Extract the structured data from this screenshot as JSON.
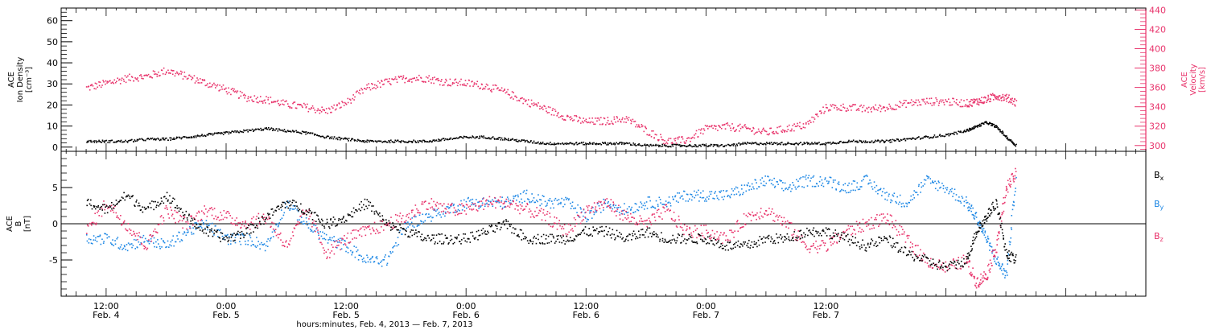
{
  "chart_data": [
    {
      "type": "scatter",
      "panel": "top",
      "ylabel_left": [
        "ACE",
        "Ion Density",
        "[cm⁻³]"
      ],
      "ylabel_right": [
        "ACE",
        "Velocity",
        "[km/s]"
      ],
      "ylim_left": [
        -2,
        66
      ],
      "ylim_right": [
        294,
        442
      ],
      "yticks_left": [
        "0",
        "10",
        "20",
        "30",
        "40",
        "50",
        "60"
      ],
      "yticks_right": [
        "300",
        "320",
        "340",
        "360",
        "380",
        "400",
        "420",
        "440"
      ],
      "colors": {
        "density": "#000000",
        "velocity": "#e8336b"
      },
      "series": [
        {
          "name": "Ion Density",
          "axis": "left",
          "color": "#000000",
          "x": [
            -2,
            0,
            2,
            4,
            6,
            8,
            10,
            12,
            14,
            16,
            18,
            20,
            22,
            24,
            26,
            28,
            30,
            32,
            34,
            36,
            38,
            40,
            42,
            44,
            46,
            48,
            50,
            52,
            54,
            56,
            58,
            60,
            62,
            64,
            66,
            68,
            70,
            72,
            74,
            76,
            78,
            80,
            82,
            84,
            86,
            87,
            88,
            89,
            90,
            91
          ],
          "y": [
            3,
            3,
            3,
            4,
            4,
            5,
            6,
            7,
            8,
            9,
            8,
            7,
            5,
            4,
            3,
            3,
            3,
            3,
            4,
            5,
            5,
            4,
            3,
            2,
            2,
            2,
            2,
            2,
            1,
            1,
            1,
            1,
            1,
            2,
            2,
            2,
            2,
            2,
            3,
            3,
            3,
            4,
            5,
            6,
            8,
            10,
            12,
            10,
            5,
            1
          ]
        },
        {
          "name": "Velocity",
          "axis": "right",
          "color": "#e8336b",
          "x": [
            -2,
            0,
            2,
            4,
            6,
            8,
            10,
            12,
            14,
            16,
            18,
            20,
            22,
            24,
            26,
            28,
            30,
            32,
            34,
            36,
            38,
            40,
            42,
            44,
            46,
            48,
            50,
            52,
            54,
            56,
            58,
            60,
            62,
            64,
            66,
            68,
            70,
            72,
            74,
            76,
            78,
            80,
            82,
            84,
            86,
            87,
            88,
            89,
            90,
            91
          ],
          "y": [
            360,
            365,
            370,
            372,
            378,
            372,
            365,
            358,
            350,
            348,
            343,
            340,
            336,
            345,
            360,
            366,
            370,
            370,
            366,
            365,
            362,
            355,
            346,
            338,
            330,
            325,
            326,
            328,
            316,
            305,
            306,
            318,
            320,
            318,
            314,
            318,
            322,
            340,
            340,
            338,
            340,
            344,
            346,
            346,
            344,
            346,
            348,
            352,
            350,
            345
          ]
        }
      ]
    },
    {
      "type": "scatter",
      "panel": "bottom",
      "ylabel_left": [
        "ACE",
        "B",
        "[nT]"
      ],
      "ylim_left": [
        -10,
        10
      ],
      "yticks_left": [
        "5",
        "0",
        "-5"
      ],
      "xlim": [
        -4.5,
        104
      ],
      "xticks": [
        {
          "x": 0,
          "line1": "12:00",
          "line2": "Feb. 4"
        },
        {
          "x": 12,
          "line1": "0:00",
          "line2": "Feb. 5"
        },
        {
          "x": 24,
          "line1": "12:00",
          "line2": "Feb. 5"
        },
        {
          "x": 36,
          "line1": "0:00",
          "line2": "Feb. 6"
        },
        {
          "x": 48,
          "line1": "12:00",
          "line2": "Feb. 6"
        },
        {
          "x": 60,
          "line1": "0:00",
          "line2": "Feb. 7"
        },
        {
          "x": 72,
          "line1": "12:00",
          "line2": "Feb. 7"
        }
      ],
      "xlabel": "hours:minutes, Feb.  4, 2013 — Feb.  7, 2013",
      "legend": [
        {
          "label": "B",
          "sub": "x",
          "color": "#000000"
        },
        {
          "label": "B",
          "sub": "y",
          "color": "#1e88e5"
        },
        {
          "label": "B",
          "sub": "z",
          "color": "#e8336b"
        }
      ],
      "series": [
        {
          "name": "Bx",
          "color": "#000000",
          "x": [
            -2,
            0,
            2,
            4,
            6,
            8,
            10,
            12,
            14,
            16,
            18,
            20,
            22,
            24,
            26,
            28,
            30,
            32,
            34,
            36,
            38,
            40,
            42,
            44,
            46,
            48,
            50,
            52,
            54,
            56,
            58,
            60,
            62,
            64,
            66,
            68,
            70,
            72,
            74,
            76,
            78,
            80,
            82,
            84,
            86,
            87,
            88,
            89,
            90,
            91
          ],
          "y": [
            3,
            2,
            4,
            2,
            4,
            1,
            -1,
            -2,
            -1,
            1,
            3,
            2,
            0,
            1,
            3,
            0,
            -1,
            -2,
            -2,
            -2,
            -1,
            0,
            -2,
            -2,
            -2,
            -1,
            -1,
            -2,
            -1,
            -2,
            -2,
            -2,
            -3,
            -3,
            -2,
            -2,
            -1,
            -1,
            -2,
            -3,
            -2,
            -4,
            -5,
            -6,
            -5,
            -1,
            1,
            3,
            -4,
            -5
          ]
        },
        {
          "name": "By",
          "color": "#1e88e5",
          "x": [
            -2,
            0,
            2,
            4,
            6,
            8,
            10,
            12,
            14,
            16,
            18,
            20,
            22,
            24,
            26,
            28,
            30,
            32,
            34,
            36,
            38,
            40,
            42,
            44,
            46,
            48,
            50,
            52,
            54,
            56,
            58,
            60,
            62,
            64,
            66,
            68,
            70,
            72,
            74,
            76,
            78,
            80,
            82,
            84,
            86,
            87,
            88,
            89,
            90,
            91
          ],
          "y": [
            -2,
            -2,
            -3,
            -2,
            -3,
            -1,
            0,
            -2,
            -2,
            -3,
            3,
            0,
            -2,
            -3,
            -5,
            -5,
            0,
            1,
            2,
            3,
            3,
            3,
            4,
            3,
            3,
            1,
            3,
            2,
            3,
            3,
            4,
            4,
            4,
            5,
            6,
            5,
            6,
            6,
            5,
            6,
            4,
            3,
            6,
            5,
            3,
            1,
            -2,
            -5,
            -7,
            7
          ]
        },
        {
          "name": "Bz",
          "color": "#e8336b",
          "x": [
            -2,
            0,
            2,
            4,
            6,
            8,
            10,
            12,
            14,
            16,
            18,
            20,
            22,
            24,
            26,
            28,
            30,
            32,
            34,
            36,
            38,
            40,
            42,
            44,
            46,
            48,
            50,
            52,
            54,
            56,
            58,
            60,
            62,
            64,
            66,
            68,
            70,
            72,
            74,
            76,
            78,
            80,
            82,
            84,
            86,
            87,
            88,
            89,
            90,
            91
          ],
          "y": [
            -1,
            3,
            0,
            -3,
            2,
            0,
            2,
            1,
            0,
            1,
            -3,
            2,
            -4,
            -2,
            -1,
            0,
            1,
            3,
            2,
            2,
            3,
            3,
            2,
            1,
            -1,
            2,
            3,
            1,
            0,
            2,
            -1,
            -1,
            -2,
            1,
            2,
            0,
            -3,
            -3,
            -1,
            0,
            1,
            -2,
            -5,
            -6,
            -5,
            -8,
            -7,
            -3,
            5,
            7
          ]
        }
      ]
    }
  ]
}
